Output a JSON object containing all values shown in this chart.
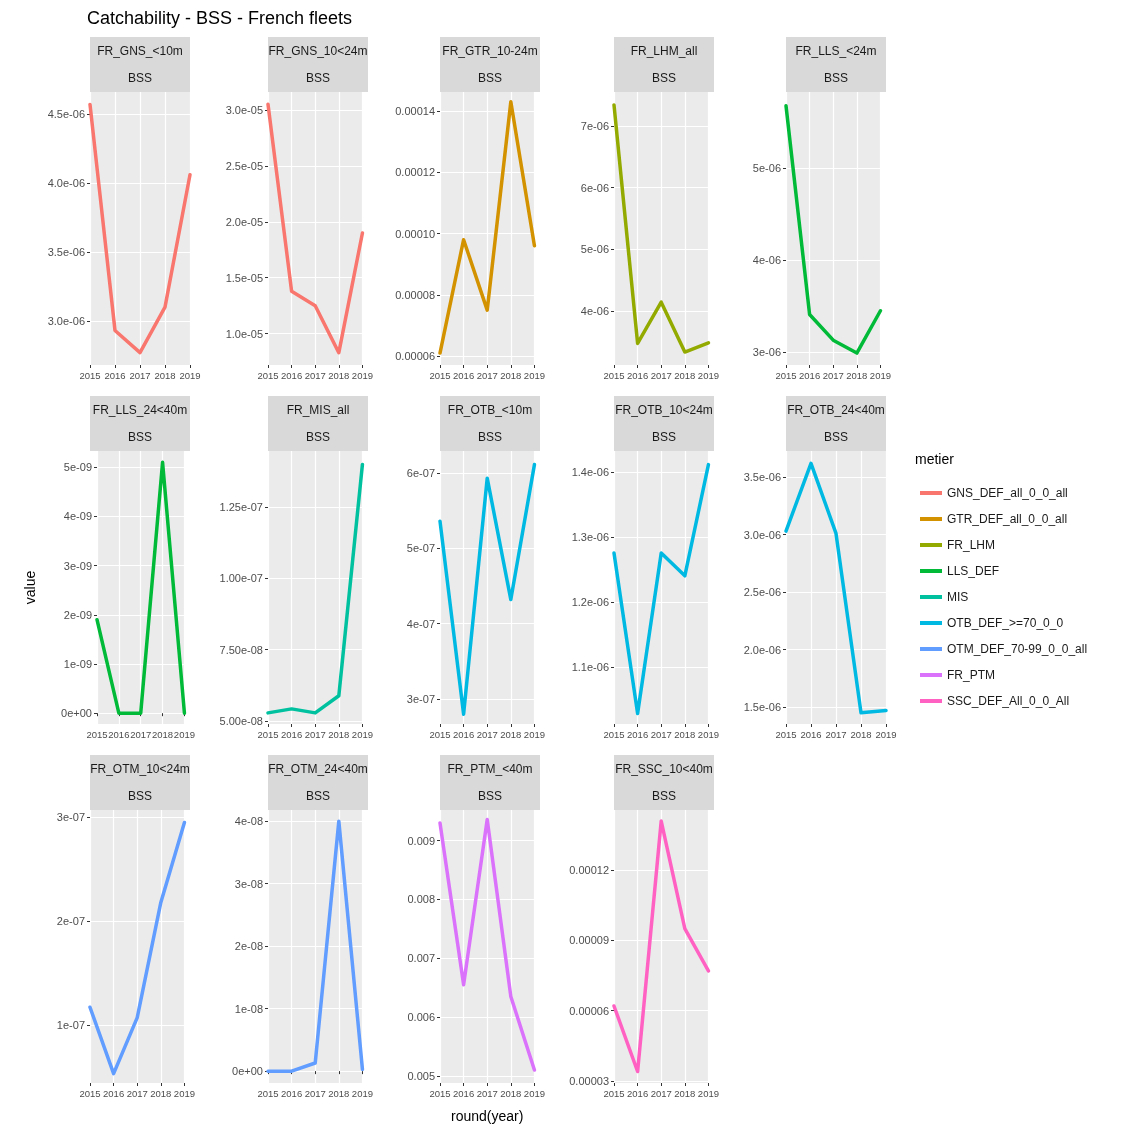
{
  "chart_data": [
    {
      "type": "line",
      "title": "FR_GNS_<10m",
      "subtitle": "BSS",
      "annotations": [
        "Catchability - BSS - French fleets"
      ],
      "categories": [
        "2015",
        "2016",
        "2017",
        "2018",
        "2019"
      ],
      "grid": true,
      "ylim": [
        2.68e-06,
        4.66e-06
      ],
      "yticks": [
        {
          "value": 3e-06,
          "label": "3.0e-06"
        },
        {
          "value": 3.5e-06,
          "label": "3.5e-06"
        },
        {
          "value": 4e-06,
          "label": "4.0e-06"
        },
        {
          "value": 4.5e-06,
          "label": "4.5e-06"
        }
      ],
      "series": [
        {
          "name": "GNS_DEF_all_0_0_all",
          "color": "#f8766d",
          "values": [
            4.57e-06,
            2.93e-06,
            2.77e-06,
            3.1e-06,
            4.06e-06
          ]
        }
      ]
    },
    {
      "type": "line",
      "title": "FR_GNS_10<24m",
      "subtitle": "BSS",
      "categories": [
        "2015",
        "2016",
        "2017",
        "2018",
        "2019"
      ],
      "grid": true,
      "ylim": [
        7.2e-06,
        3.16e-05
      ],
      "yticks": [
        {
          "value": 1e-05,
          "label": "1.0e-05"
        },
        {
          "value": 1.5e-05,
          "label": "1.5e-05"
        },
        {
          "value": 2e-05,
          "label": "2.0e-05"
        },
        {
          "value": 2.5e-05,
          "label": "2.5e-05"
        },
        {
          "value": 3e-05,
          "label": "3.0e-05"
        }
      ],
      "series": [
        {
          "color": "#f8766d",
          "values": [
            3.05e-05,
            1.38e-05,
            1.25e-05,
            8.3e-06,
            1.9e-05
          ]
        }
      ]
    },
    {
      "type": "line",
      "title": "FR_GTR_10-24m",
      "subtitle": "BSS",
      "categories": [
        "2015",
        "2016",
        "2017",
        "2018",
        "2019"
      ],
      "grid": true,
      "ylim": [
        5.71e-05,
        0.0001462
      ],
      "yticks": [
        {
          "value": 6e-05,
          "label": "0.00006"
        },
        {
          "value": 8e-05,
          "label": "0.00008"
        },
        {
          "value": 0.0001,
          "label": "0.00010"
        },
        {
          "value": 0.00012,
          "label": "0.00012"
        },
        {
          "value": 0.00014,
          "label": "0.00014"
        }
      ],
      "series": [
        {
          "name": "GTR_DEF_all_0_0_all",
          "color": "#d39200",
          "values": [
            6.1e-05,
            9.8e-05,
            7.5e-05,
            0.000143,
            9.6e-05
          ]
        }
      ]
    },
    {
      "type": "line",
      "title": "FR_LHM_all",
      "subtitle": "BSS",
      "categories": [
        "2015",
        "2016",
        "2017",
        "2018",
        "2019"
      ],
      "grid": true,
      "ylim": [
        3.12e-06,
        7.55e-06
      ],
      "yticks": [
        {
          "value": 4e-06,
          "label": "4e-06"
        },
        {
          "value": 5e-06,
          "label": "5e-06"
        },
        {
          "value": 6e-06,
          "label": "6e-06"
        },
        {
          "value": 7e-06,
          "label": "7e-06"
        }
      ],
      "series": [
        {
          "name": "FR_LHM",
          "color": "#93aa00",
          "values": [
            7.34e-06,
            3.47e-06,
            4.14e-06,
            3.33e-06,
            3.48e-06
          ]
        }
      ]
    },
    {
      "type": "line",
      "title": "FR_LLS_<24m",
      "subtitle": "BSS",
      "categories": [
        "2015",
        "2016",
        "2017",
        "2018",
        "2019"
      ],
      "grid": true,
      "ylim": [
        2.86e-06,
        5.83e-06
      ],
      "yticks": [
        {
          "value": 3e-06,
          "label": "3e-06"
        },
        {
          "value": 4e-06,
          "label": "4e-06"
        },
        {
          "value": 5e-06,
          "label": "5e-06"
        }
      ],
      "series": [
        {
          "name": "LLS_DEF",
          "color": "#00ba38",
          "values": [
            5.68e-06,
            3.41e-06,
            3.13e-06,
            2.99e-06,
            3.45e-06
          ]
        }
      ]
    },
    {
      "type": "line",
      "title": "FR_LLS_24<40m",
      "subtitle": "BSS",
      "ylabel": "value",
      "categories": [
        "2015",
        "2016",
        "2017",
        "2018",
        "2019"
      ],
      "grid": true,
      "ylim": [
        -2.2e-10,
        5.33e-09
      ],
      "yticks": [
        {
          "value": 0,
          "label": "0e+00"
        },
        {
          "value": 1e-09,
          "label": "1e-09"
        },
        {
          "value": 2e-09,
          "label": "2e-09"
        },
        {
          "value": 3e-09,
          "label": "3e-09"
        },
        {
          "value": 4e-09,
          "label": "4e-09"
        },
        {
          "value": 5e-09,
          "label": "5e-09"
        }
      ],
      "series": [
        {
          "color": "#00ba38",
          "values": [
            1.9e-09,
            0,
            0,
            5.1e-09,
            0
          ]
        }
      ]
    },
    {
      "type": "line",
      "title": "FR_MIS_all",
      "subtitle": "BSS",
      "categories": [
        "2015",
        "2016",
        "2017",
        "2018",
        "2019"
      ],
      "grid": true,
      "ylim": [
        4.89e-08,
        1.447e-07
      ],
      "yticks": [
        {
          "value": 5e-08,
          "label": "5.00e-08"
        },
        {
          "value": 7.5e-08,
          "label": "7.50e-08"
        },
        {
          "value": 1e-07,
          "label": "1.00e-07"
        },
        {
          "value": 1.25e-07,
          "label": "1.25e-07"
        }
      ],
      "series": [
        {
          "name": "MIS",
          "color": "#00c19f",
          "values": [
            5.28e-08,
            5.42e-08,
            5.28e-08,
            5.88e-08,
            1.4e-07
          ]
        }
      ]
    },
    {
      "type": "line",
      "title": "FR_OTB_<10m",
      "subtitle": "BSS",
      "categories": [
        "2015",
        "2016",
        "2017",
        "2018",
        "2019"
      ],
      "grid": true,
      "ylim": [
        2.67e-07,
        6.29e-07
      ],
      "yticks": [
        {
          "value": 3e-07,
          "label": "3e-07"
        },
        {
          "value": 4e-07,
          "label": "4e-07"
        },
        {
          "value": 5e-07,
          "label": "5e-07"
        },
        {
          "value": 6e-07,
          "label": "6e-07"
        }
      ],
      "series": [
        {
          "color": "#00b9e3",
          "values": [
            5.36e-07,
            2.8e-07,
            5.93e-07,
            4.32e-07,
            6.11e-07
          ]
        }
      ]
    },
    {
      "type": "line",
      "title": "FR_OTB_10<24m",
      "subtitle": "BSS",
      "categories": [
        "2015",
        "2016",
        "2017",
        "2018",
        "2019"
      ],
      "grid": true,
      "ylim": [
        1.012e-06,
        1.432e-06
      ],
      "yticks": [
        {
          "value": 1.1e-06,
          "label": "1.1e-06"
        },
        {
          "value": 1.2e-06,
          "label": "1.2e-06"
        },
        {
          "value": 1.3e-06,
          "label": "1.3e-06"
        },
        {
          "value": 1.4e-06,
          "label": "1.4e-06"
        }
      ],
      "series": [
        {
          "color": "#00b9e3",
          "values": [
            1.275e-06,
            1.028e-06,
            1.275e-06,
            1.24e-06,
            1.411e-06
          ]
        }
      ]
    },
    {
      "type": "line",
      "title": "FR_OTB_24<40m",
      "subtitle": "BSS",
      "legend": "right",
      "legend_title": "metier",
      "categories": [
        "2015",
        "2016",
        "2017",
        "2018",
        "2019"
      ],
      "grid": true,
      "ylim": [
        1.352e-06,
        3.727e-06
      ],
      "yticks": [
        {
          "value": 1.5e-06,
          "label": "1.5e-06"
        },
        {
          "value": 2e-06,
          "label": "2.0e-06"
        },
        {
          "value": 2.5e-06,
          "label": "2.5e-06"
        },
        {
          "value": 3e-06,
          "label": "3.0e-06"
        },
        {
          "value": 3.5e-06,
          "label": "3.5e-06"
        }
      ],
      "series": [
        {
          "name": "OTB_DEF_>=70_0_0",
          "color": "#00b9e3",
          "values": [
            3.03e-06,
            3.62e-06,
            3.01e-06,
            1.45e-06,
            1.47e-06
          ]
        }
      ]
    },
    {
      "type": "line",
      "title": "FR_OTM_10<24m",
      "subtitle": "BSS",
      "categories": [
        "2015",
        "2016",
        "2017",
        "2018",
        "2019"
      ],
      "grid": true,
      "ylim": [
        4.4e-08,
        3.07e-07
      ],
      "yticks": [
        {
          "value": 1e-07,
          "label": "1e-07"
        },
        {
          "value": 2e-07,
          "label": "2e-07"
        },
        {
          "value": 3e-07,
          "label": "3e-07"
        }
      ],
      "series": [
        {
          "name": "OTM_DEF_70-99_0_0_all",
          "color": "#619cff",
          "values": [
            1.17e-07,
            5.3e-08,
            1.07e-07,
            2.18e-07,
            2.95e-07
          ]
        }
      ]
    },
    {
      "type": "line",
      "title": "FR_OTM_24<40m",
      "subtitle": "BSS",
      "categories": [
        "2015",
        "2016",
        "2017",
        "2018",
        "2019"
      ],
      "grid": true,
      "ylim": [
        -1.9e-09,
        4.18e-08
      ],
      "yticks": [
        {
          "value": 0,
          "label": "0e+00"
        },
        {
          "value": 1e-08,
          "label": "1e-08"
        },
        {
          "value": 2e-08,
          "label": "2e-08"
        },
        {
          "value": 3e-08,
          "label": "3e-08"
        },
        {
          "value": 4e-08,
          "label": "4e-08"
        }
      ],
      "series": [
        {
          "color": "#619cff",
          "values": [
            0,
            0,
            1.3e-09,
            4e-08,
            3e-10
          ]
        }
      ]
    },
    {
      "type": "line",
      "title": "FR_PTM_<40m",
      "subtitle": "BSS",
      "xlabel": "round(year)",
      "categories": [
        "2015",
        "2016",
        "2017",
        "2018",
        "2019"
      ],
      "grid": true,
      "ylim": [
        0.00488,
        0.00952
      ],
      "yticks": [
        0.005,
        0.006,
        0.007,
        0.008,
        0.009
      ],
      "series": [
        {
          "name": "FR_PTM",
          "color": "#db72fb",
          "values": [
            0.0093,
            0.00655,
            0.00936,
            0.00635,
            0.0051
          ]
        }
      ]
    },
    {
      "type": "line",
      "title": "FR_SSC_10<40m",
      "subtitle": "BSS",
      "categories": [
        "2015",
        "2016",
        "2017",
        "2018",
        "2019"
      ],
      "grid": true,
      "ylim": [
        2.91e-05,
        0.0001457
      ],
      "yticks": [
        {
          "value": 3e-05,
          "label": "0.00003"
        },
        {
          "value": 6e-05,
          "label": "0.00006"
        },
        {
          "value": 9e-05,
          "label": "0.00009"
        },
        {
          "value": 0.00012,
          "label": "0.00012"
        }
      ],
      "series": [
        {
          "name": "SSC_DEF_All_0_0_All",
          "color": "#ff61c3",
          "values": [
            6.2e-05,
            3.4e-05,
            0.000141,
            9.5e-05,
            7.7e-05
          ]
        }
      ]
    }
  ]
}
